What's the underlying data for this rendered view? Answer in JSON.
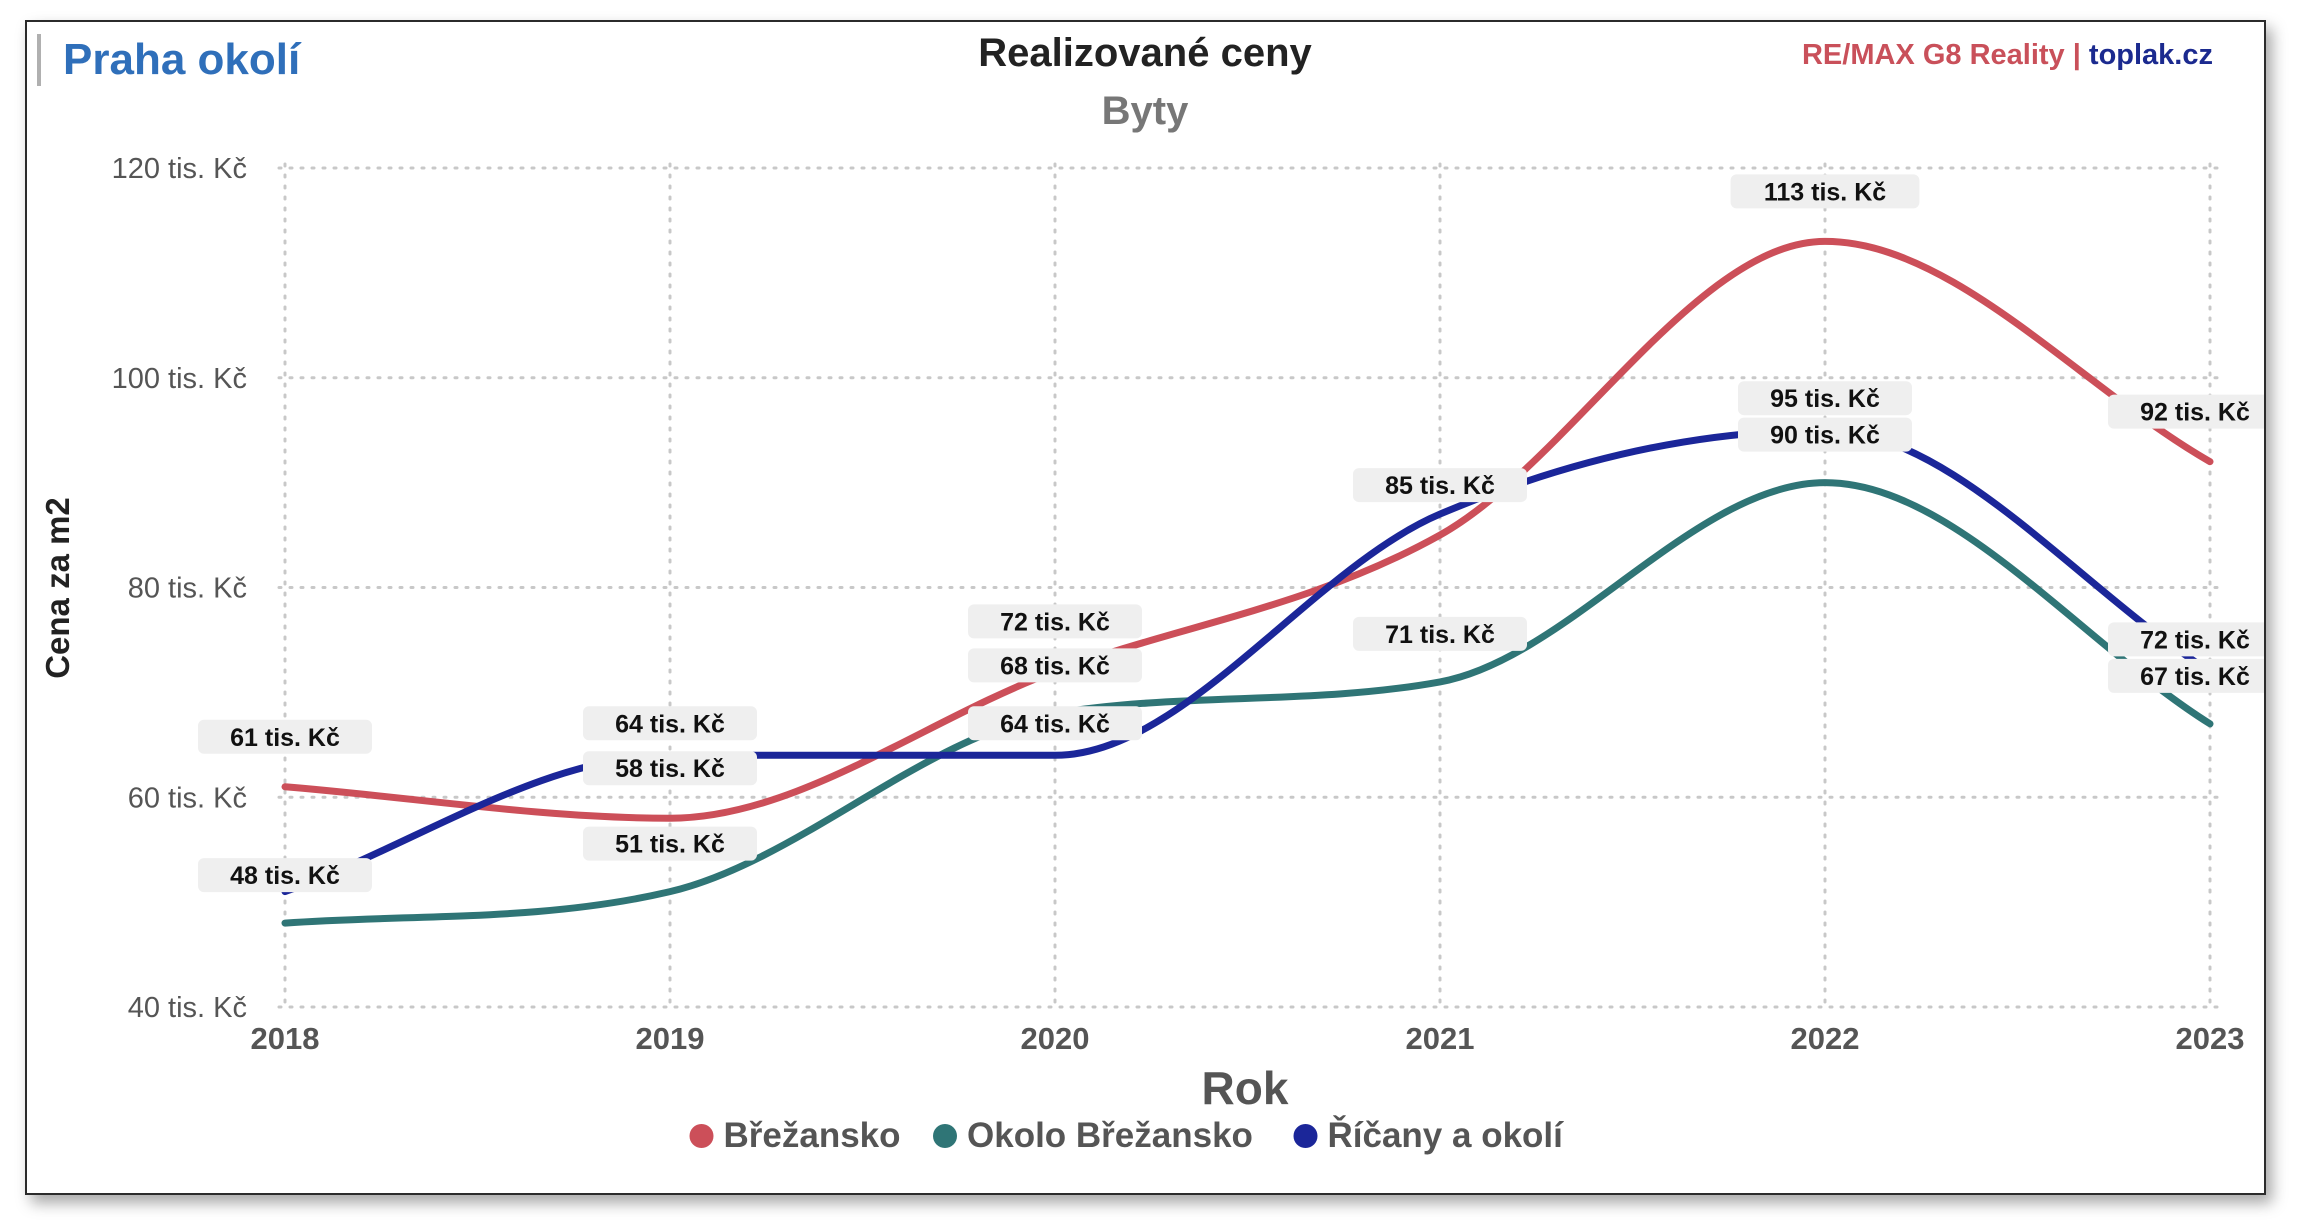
{
  "header": {
    "region": "Praha okolí",
    "brand_part1": "RE/MAX G8 Reality",
    "brand_sep": " | ",
    "brand_part2": "toplak.cz"
  },
  "colors": {
    "region": "#2f6fba",
    "brand_red": "#c9505a",
    "brand_blue": "#1b2a8f"
  },
  "chart_data": {
    "type": "line",
    "title": "Realizované ceny",
    "subtitle": "Byty",
    "xlabel": "Rok",
    "ylabel": "Cena za m2",
    "x": [
      2018,
      2019,
      2020,
      2021,
      2022,
      2023
    ],
    "ylim": [
      40,
      120
    ],
    "yticks": [
      40,
      60,
      80,
      100,
      120
    ],
    "ytick_labels": [
      "40 tis. Kč",
      "60 tis. Kč",
      "80 tis. Kč",
      "100 tis. Kč",
      "120 tis. Kč"
    ],
    "grid": true,
    "legend_position": "bottom",
    "value_suffix": " tis. Kč",
    "series": [
      {
        "name": "Břežansko",
        "color": "#cc4f59",
        "values": [
          61,
          58,
          72,
          85,
          113,
          92
        ],
        "labels": [
          "61 tis. Kč",
          "58 tis. Kč",
          "72 tis. Kč",
          "85 tis. Kč",
          "113 tis. Kč",
          "92 tis. Kč"
        ]
      },
      {
        "name": "Okolo Břežansko",
        "color": "#2f7576",
        "values": [
          48,
          51,
          68,
          71,
          90,
          67
        ],
        "labels": [
          "48 tis. Kč",
          "51 tis. Kč",
          "68 tis. Kč",
          "71 tis. Kč",
          "90 tis. Kč",
          "67 tis. Kč"
        ]
      },
      {
        "name": "Říčany a okolí",
        "color": "#1b2699",
        "values": [
          51,
          64,
          64,
          87,
          95,
          72
        ],
        "labels": [
          "",
          "64 tis. Kč",
          "64 tis. Kč",
          "",
          "95 tis. Kč",
          "72 tis. Kč"
        ]
      }
    ]
  }
}
